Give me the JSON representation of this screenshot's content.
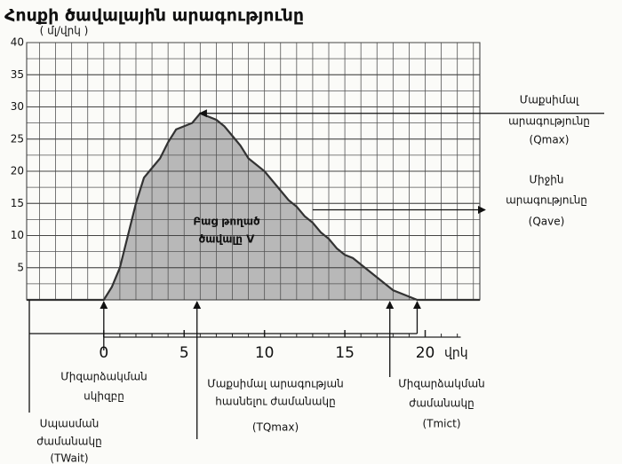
{
  "chart_data": {
    "type": "area",
    "title": "Հոսքի ծավալային արագությունը",
    "y_label": "( մլ/վրկ )",
    "x_label": "վրկ",
    "x": [
      -4.8,
      0,
      0.5,
      1,
      1.5,
      2,
      2.5,
      3,
      3.5,
      4,
      4.5,
      5,
      5.5,
      6,
      6.5,
      7,
      7.5,
      8,
      8.5,
      9,
      9.5,
      10,
      10.5,
      11,
      11.5,
      12,
      12.5,
      13,
      13.5,
      14,
      14.5,
      15,
      15.5,
      16,
      16.5,
      17,
      17.5,
      18,
      18.5,
      19,
      19.5,
      23.4
    ],
    "values": [
      0,
      0,
      2,
      5,
      10,
      15,
      19,
      20.5,
      22,
      24.5,
      26.5,
      27,
      27.5,
      29,
      28.5,
      28,
      27,
      25.5,
      24,
      22,
      21,
      20,
      18.5,
      17,
      15.5,
      14.5,
      13,
      12,
      10.5,
      9.5,
      8,
      7,
      6.5,
      5.5,
      4.5,
      3.5,
      2.5,
      1.5,
      1,
      0.5,
      0,
      0
    ],
    "color": "#b8b8b8",
    "line_color": "#333333",
    "xlim": [
      -4.8,
      23.4
    ],
    "ylim": [
      0,
      40
    ],
    "yticks": [
      5,
      10,
      15,
      20,
      25,
      30,
      35,
      40
    ],
    "xticks": [
      0,
      5,
      10,
      15,
      20
    ],
    "grid": true,
    "annotations": [
      {
        "lines": [
          "Մաքսիմալ",
          "արագությունը",
          "(Qmax)"
        ],
        "y": 29
      },
      {
        "lines": [
          "Միջին",
          "արագությունը",
          "(Qave)"
        ],
        "y": 14
      },
      {
        "lines": [
          "Բաց թողած",
          "ծավալը V"
        ]
      },
      {
        "lines": [
          "Միզարձակման",
          "սկիզբը"
        ],
        "x": 0
      },
      {
        "lines": [
          "Սպասման",
          "ժամանակը",
          "(TWait)"
        ],
        "x": -4.8
      },
      {
        "lines": [
          "Մաքսիմալ արագության",
          "հասնելու ժամանակը",
          "(TQmax)"
        ],
        "x": 5.8
      },
      {
        "lines": [
          "Միզարձակման",
          "ժամանակը",
          "(Tmict)"
        ],
        "x": 17.8,
        "end": 19.5
      }
    ]
  }
}
